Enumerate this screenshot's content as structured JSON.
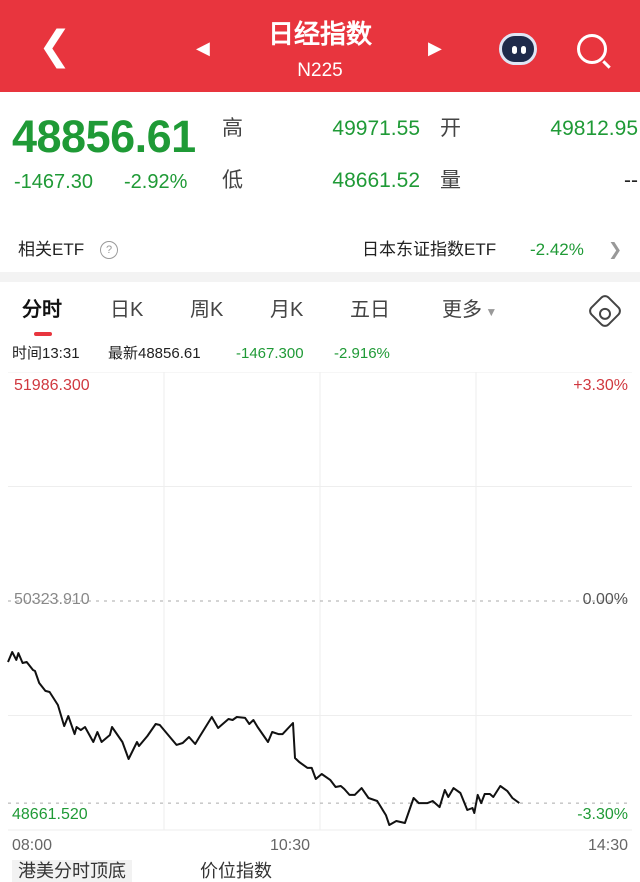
{
  "header": {
    "title": "日经指数",
    "code": "N225"
  },
  "quote": {
    "price": "48856.61",
    "change": "-1467.30",
    "change_pct": "-2.92%",
    "high_label": "高",
    "high": "49971.55",
    "open_label": "开",
    "open": "49812.95",
    "low_label": "低",
    "low": "48661.52",
    "volume_label": "量",
    "volume": "--"
  },
  "etf": {
    "label": "相关ETF",
    "name": "日本东证指数ETF",
    "change": "-2.42%"
  },
  "tabs": [
    "分时",
    "日K",
    "周K",
    "月K",
    "五日",
    "更多"
  ],
  "info": {
    "time": "时间13:31",
    "latest": "最新48856.61",
    "change": "-1467.300",
    "change_pct": "-2.916%"
  },
  "colors": {
    "header": "#e8353e",
    "down": "#1f9a36",
    "up": "#d0383f"
  },
  "chart_data": {
    "type": "line",
    "ylim": [
      48661.52,
      51986.3
    ],
    "y_labels": {
      "top": "51986.300",
      "mid": "50323.910",
      "bottom": "48661.520"
    },
    "pct_labels": {
      "top": "+3.30%",
      "mid": "0.00%",
      "bottom": "-3.30%"
    },
    "x_ticks": [
      "08:00",
      "10:30",
      "14:30"
    ],
    "current_price": 48856.61,
    "points": [
      [
        "08:00",
        49881
      ],
      [
        "08:02",
        49954
      ],
      [
        "08:04",
        49896
      ],
      [
        "08:05",
        49946
      ],
      [
        "08:07",
        49874
      ],
      [
        "08:09",
        49881
      ],
      [
        "08:12",
        49823
      ],
      [
        "08:13",
        49816
      ],
      [
        "08:15",
        49729
      ],
      [
        "08:18",
        49671
      ],
      [
        "08:20",
        49663
      ],
      [
        "08:24",
        49569
      ],
      [
        "08:27",
        49416
      ],
      [
        "08:29",
        49489
      ],
      [
        "08:32",
        49358
      ],
      [
        "08:33",
        49409
      ],
      [
        "08:35",
        49387
      ],
      [
        "08:37",
        49409
      ],
      [
        "08:41",
        49300
      ],
      [
        "08:43",
        49373
      ],
      [
        "08:45",
        49300
      ],
      [
        "08:49",
        49351
      ],
      [
        "08:50",
        49409
      ],
      [
        "08:55",
        49300
      ],
      [
        "08:58",
        49177
      ],
      [
        "09:02",
        49300
      ],
      [
        "09:03",
        49271
      ],
      [
        "09:07",
        49344
      ],
      [
        "09:11",
        49431
      ],
      [
        "09:13",
        49424
      ],
      [
        "09:21",
        49279
      ],
      [
        "09:24",
        49293
      ],
      [
        "09:27",
        49337
      ],
      [
        "09:30",
        49286
      ],
      [
        "09:32",
        49337
      ],
      [
        "09:38",
        49482
      ],
      [
        "09:41",
        49402
      ],
      [
        "09:46",
        49467
      ],
      [
        "09:48",
        49460
      ],
      [
        "09:50",
        49482
      ],
      [
        "09:54",
        49475
      ],
      [
        "09:56",
        49431
      ],
      [
        "09:58",
        49460
      ],
      [
        "10:00",
        49409
      ],
      [
        "10:05",
        49300
      ],
      [
        "10:07",
        49373
      ],
      [
        "10:10",
        49358
      ],
      [
        "10:12",
        49358
      ],
      [
        "10:17",
        49438
      ],
      [
        "10:18",
        49184
      ],
      [
        "10:20",
        49155
      ],
      [
        "10:24",
        49112
      ],
      [
        "10:26",
        49112
      ],
      [
        "10:28",
        49032
      ],
      [
        "11:31",
        49068
      ],
      [
        "11:36",
        49024
      ],
      [
        "11:39",
        48974
      ],
      [
        "11:42",
        48981
      ],
      [
        "11:44",
        48959
      ],
      [
        "11:47",
        48916
      ],
      [
        "11:50",
        48916
      ],
      [
        "11:54",
        48966
      ],
      [
        "11:58",
        48894
      ],
      [
        "12:03",
        48872
      ],
      [
        "12:08",
        48770
      ],
      [
        "12:10",
        48698
      ],
      [
        "12:14",
        48727
      ],
      [
        "12:19",
        48712
      ],
      [
        "12:24",
        48894
      ],
      [
        "12:27",
        48857
      ],
      [
        "12:32",
        48857
      ],
      [
        "12:35",
        48872
      ],
      [
        "12:39",
        48828
      ],
      [
        "12:42",
        48952
      ],
      [
        "12:44",
        48901
      ],
      [
        "12:47",
        48966
      ],
      [
        "12:51",
        48930
      ],
      [
        "12:55",
        48807
      ],
      [
        "12:58",
        48821
      ],
      [
        "12:59",
        48785
      ],
      [
        "13:01",
        48916
      ],
      [
        "13:03",
        48857
      ],
      [
        "13:05",
        48923
      ],
      [
        "13:08",
        48923
      ],
      [
        "13:10",
        48901
      ],
      [
        "13:14",
        48981
      ],
      [
        "13:18",
        48945
      ],
      [
        "13:21",
        48894
      ],
      [
        "13:25",
        48857
      ]
    ]
  },
  "bottom": {
    "left": "港美分时顶底",
    "right": "价位指数"
  }
}
